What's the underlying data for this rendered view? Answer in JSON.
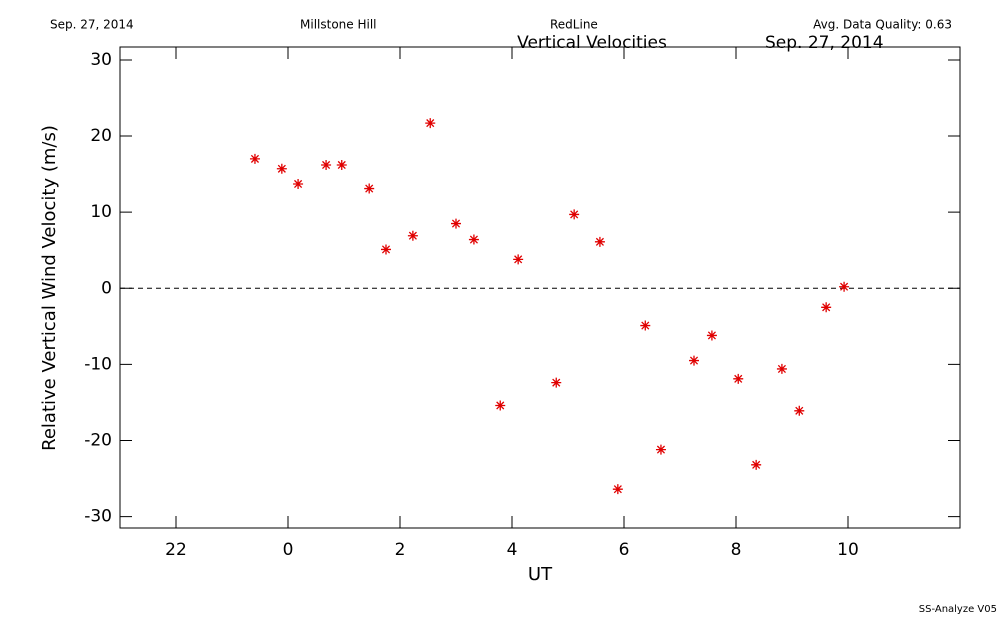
{
  "chart_data": {
    "type": "scatter",
    "header": [
      "Sep. 27, 2014",
      "Millstone Hill",
      "RedLine",
      "Avg. Data Quality: 0.63"
    ],
    "title": "Vertical Velocities",
    "subtitle": "Sep. 27, 2014",
    "footer": "SS-Analyze V05",
    "x_label": "UT",
    "y_label": "Relative Vertical Wind Velocity (m/s)",
    "xlim": [
      -3,
      12
    ],
    "ylim": [
      -31.5,
      31.7
    ],
    "xticks": [
      {
        "value": -2,
        "label": "22"
      },
      0,
      2,
      4,
      6,
      8,
      10
    ],
    "yticks": [
      -30,
      -20,
      -10,
      0,
      10,
      20,
      30
    ],
    "reference_line": 0,
    "color": "#e00000",
    "x": [
      -0.59,
      -0.11,
      0.18,
      0.68,
      0.96,
      1.45,
      1.75,
      2.23,
      2.54,
      3.0,
      3.32,
      3.79,
      4.11,
      4.79,
      5.11,
      5.57,
      5.89,
      6.38,
      6.66,
      7.25,
      7.57,
      8.04,
      8.36,
      8.82,
      9.13,
      9.61,
      9.93
    ],
    "values": [
      17.0,
      15.7,
      13.7,
      16.2,
      16.2,
      13.1,
      5.1,
      6.9,
      21.7,
      8.5,
      6.4,
      -15.4,
      3.8,
      -12.4,
      9.7,
      6.1,
      -26.4,
      -4.9,
      -21.2,
      -9.5,
      -6.2,
      -11.9,
      -23.2,
      -10.6,
      -16.1,
      -2.5,
      0.2
    ]
  }
}
